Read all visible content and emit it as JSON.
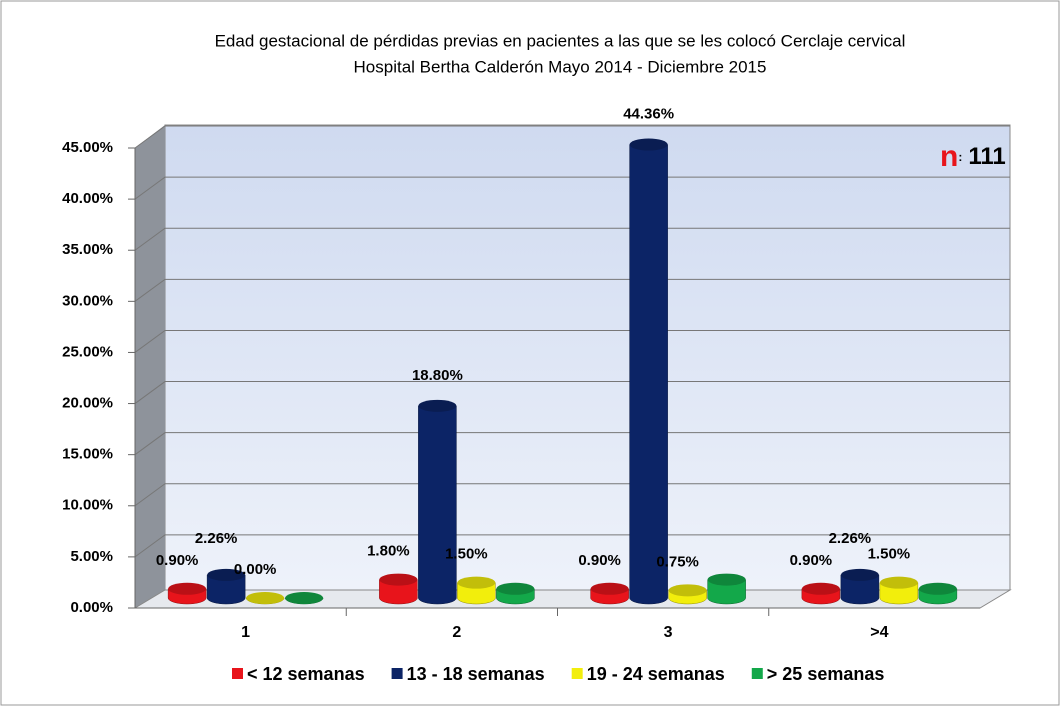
{
  "chart_data": {
    "type": "bar3d",
    "title": "Edad gestacional de pérdidas previas en pacientes a las que se les colocó Cerclaje cervical",
    "subtitle": "Hospital Bertha Calderón Mayo 2014 - Diciembre 2015",
    "annotation": [
      "n",
      ":",
      "111"
    ],
    "categories": [
      "1",
      "2",
      "3",
      ">4"
    ],
    "series": [
      {
        "name": "< 12 semanas",
        "color": "#e8141b",
        "values": [
          0.9,
          1.8,
          0.9,
          0.9
        ],
        "value_labels": [
          "0.90%",
          "1.80%",
          "0.90%",
          "0.90%"
        ]
      },
      {
        "name": "13 - 18 semanas",
        "color": "#0c2466",
        "values": [
          2.26,
          18.8,
          44.36,
          2.26
        ],
        "value_labels": [
          "2.26%",
          "18.80%",
          "44.36%",
          "2.26%"
        ]
      },
      {
        "name": "19 - 24 semanas",
        "color": "#f2ee0c",
        "values": [
          0,
          1.5,
          0.75,
          1.5
        ],
        "value_labels": [
          "0.00%",
          "1.50%",
          "0.75%",
          "1.50%"
        ]
      },
      {
        "name": "> 25 semanas",
        "color": "#13a84a",
        "values": [
          0,
          0.9,
          1.8,
          0.9
        ],
        "value_labels": [
          null,
          null,
          null,
          null
        ]
      }
    ],
    "ylim": [
      0,
      45
    ],
    "yticks": [
      {
        "value": 0,
        "label": "0.00%"
      },
      {
        "value": 5,
        "label": "5.00%"
      },
      {
        "value": 10,
        "label": "10.00%"
      },
      {
        "value": 15,
        "label": "15.00%"
      },
      {
        "value": 20,
        "label": "20.00%"
      },
      {
        "value": 25,
        "label": "25.00%"
      },
      {
        "value": 30,
        "label": "30.00%"
      },
      {
        "value": 35,
        "label": "35.00%"
      },
      {
        "value": 40,
        "label": "40.00%"
      },
      {
        "value": 45,
        "label": "45.00%"
      }
    ],
    "grid": true,
    "legend": "bottom"
  }
}
